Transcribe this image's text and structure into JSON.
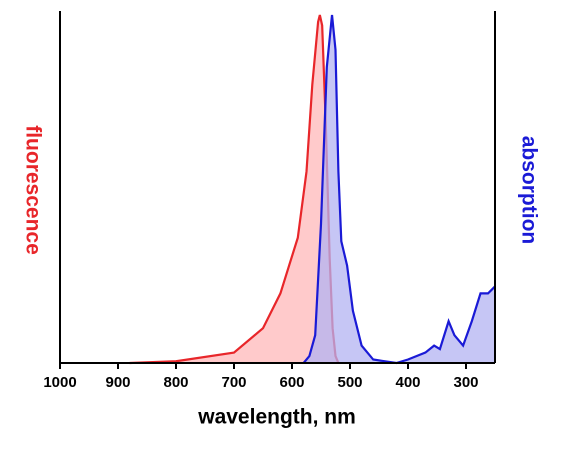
{
  "chart_data": {
    "type": "area",
    "x_label": "wavelength, nm",
    "xlim": [
      1000,
      250
    ],
    "xticks": [
      1000,
      900,
      800,
      700,
      600,
      500,
      400,
      300
    ],
    "ylim": [
      0,
      1
    ],
    "series": [
      {
        "name": "fluorescence",
        "color": "#e8262a",
        "fill": "#ffb8ba",
        "side": "left",
        "x": [
          880,
          800,
          700,
          650,
          620,
          605,
          590,
          575,
          565,
          555,
          552,
          548,
          542,
          535,
          530,
          525,
          520
        ],
        "values": [
          0,
          0.005,
          0.03,
          0.1,
          0.2,
          0.28,
          0.36,
          0.55,
          0.8,
          0.98,
          1.0,
          0.97,
          0.7,
          0.3,
          0.1,
          0.02,
          0
        ]
      },
      {
        "name": "absorption",
        "color": "#1a1ad6",
        "fill": "#b3b3f2",
        "side": "right",
        "x": [
          580,
          570,
          560,
          550,
          540,
          531,
          525,
          520,
          515,
          505,
          495,
          480,
          460,
          420,
          400,
          370,
          355,
          345,
          330,
          320,
          305,
          290,
          275,
          262,
          250
        ],
        "values": [
          0,
          0.02,
          0.08,
          0.4,
          0.85,
          1.0,
          0.9,
          0.55,
          0.35,
          0.28,
          0.15,
          0.05,
          0.01,
          0,
          0.01,
          0.03,
          0.05,
          0.04,
          0.12,
          0.08,
          0.05,
          0.12,
          0.2,
          0.2,
          0.22
        ]
      }
    ]
  }
}
